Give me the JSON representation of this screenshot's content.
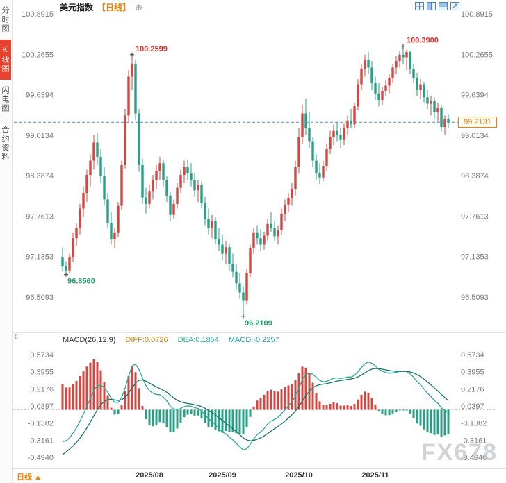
{
  "app": {
    "title": "美元指数",
    "period_tag": "【日线】",
    "add_icon": "⊕"
  },
  "sidebar": {
    "tabs": [
      {
        "label": "分时图",
        "active": false
      },
      {
        "label": "K线图",
        "active": true
      },
      {
        "label": "闪电图",
        "active": false
      },
      {
        "label": "合约资料",
        "active": false
      }
    ]
  },
  "toolbar": {
    "icons": [
      "multi-grid-icon",
      "vertical-split-icon",
      "horizontal-split-icon",
      "fullscreen-icon"
    ]
  },
  "colors": {
    "up": "#d6453f",
    "down": "#26a184",
    "high_label": "#e03131",
    "low_label": "#1f9e6e",
    "current_line": "#4f8fde",
    "badge": "#f18101",
    "line_diff": "#2aa79b",
    "line_dea": "#16756b",
    "cross": "#333333"
  },
  "chart_data": {
    "type": "candlestick",
    "title": "美元指数【日线】",
    "legend_position": "top-left",
    "grid": false,
    "y_axis_labels": [
      "100.8915",
      "100.2655",
      "99.6394",
      "99.0134",
      "98.3874",
      "97.7613",
      "97.1353",
      "96.5093"
    ],
    "y_anchor": {
      "top_value": 100.8915,
      "bottom_value": 96.5093
    },
    "x_tick_labels": [
      "2025/08",
      "2025/09",
      "2025/10",
      "2025/11"
    ],
    "x_tick_indices": [
      25,
      46,
      68,
      90
    ],
    "current_price": {
      "value": 99.2131,
      "label": "99.2131"
    },
    "annotations": [
      {
        "text": "100.2599",
        "index": 20,
        "price": 100.2599,
        "kind": "high"
      },
      {
        "text": "100.3900",
        "index": 98,
        "price": 100.39,
        "kind": "high"
      },
      {
        "text": "96.8560",
        "index": 1,
        "price": 96.856,
        "kind": "low"
      },
      {
        "text": "96.2109",
        "index": 52,
        "price": 96.2109,
        "kind": "low"
      }
    ],
    "candles": [
      [
        97.12,
        97.28,
        96.9,
        96.98
      ],
      [
        96.98,
        97.06,
        96.856,
        96.92
      ],
      [
        96.92,
        97.18,
        96.88,
        97.12
      ],
      [
        97.12,
        97.5,
        97.05,
        97.42
      ],
      [
        97.42,
        97.65,
        97.3,
        97.58
      ],
      [
        97.58,
        97.95,
        97.48,
        97.88
      ],
      [
        97.88,
        98.22,
        97.75,
        98.12
      ],
      [
        98.12,
        98.48,
        97.98,
        98.4
      ],
      [
        98.4,
        98.72,
        98.22,
        98.62
      ],
      [
        98.62,
        99.02,
        98.48,
        98.9
      ],
      [
        98.9,
        99.05,
        98.55,
        98.68
      ],
      [
        98.68,
        98.8,
        98.28,
        98.38
      ],
      [
        98.38,
        98.52,
        97.92,
        98.02
      ],
      [
        98.02,
        98.12,
        97.58,
        97.66
      ],
      [
        97.66,
        97.82,
        97.32,
        97.4
      ],
      [
        97.4,
        97.58,
        97.26,
        97.5
      ],
      [
        97.5,
        97.98,
        97.44,
        97.92
      ],
      [
        97.92,
        98.62,
        97.86,
        98.55
      ],
      [
        98.55,
        99.42,
        98.5,
        99.32
      ],
      [
        99.32,
        100.02,
        99.22,
        99.92
      ],
      [
        99.92,
        100.2599,
        99.72,
        100.12
      ],
      [
        100.12,
        100.18,
        99.25,
        99.35
      ],
      [
        99.35,
        99.42,
        98.45,
        98.55
      ],
      [
        98.55,
        98.65,
        97.95,
        98.05
      ],
      [
        98.05,
        98.2,
        97.8,
        97.95
      ],
      [
        97.95,
        98.25,
        97.88,
        98.15
      ],
      [
        98.15,
        98.4,
        98.02,
        98.32
      ],
      [
        98.32,
        98.55,
        98.18,
        98.46
      ],
      [
        98.46,
        98.68,
        98.32,
        98.58
      ],
      [
        98.58,
        98.64,
        98.22,
        98.32
      ],
      [
        98.32,
        98.38,
        97.98,
        98.08
      ],
      [
        98.08,
        98.14,
        97.68,
        97.78
      ],
      [
        97.78,
        98.02,
        97.72,
        97.95
      ],
      [
        97.95,
        98.28,
        97.88,
        98.2
      ],
      [
        98.2,
        98.48,
        98.12,
        98.4
      ],
      [
        98.4,
        98.62,
        98.28,
        98.52
      ],
      [
        98.52,
        98.64,
        98.32,
        98.42
      ],
      [
        98.42,
        98.58,
        98.22,
        98.32
      ],
      [
        98.32,
        98.42,
        98.06,
        98.16
      ],
      [
        98.16,
        98.32,
        97.98,
        98.24
      ],
      [
        98.24,
        98.3,
        97.88,
        97.96
      ],
      [
        97.96,
        98.06,
        97.62,
        97.72
      ],
      [
        97.72,
        97.88,
        97.48,
        97.58
      ],
      [
        97.58,
        97.78,
        97.42,
        97.68
      ],
      [
        97.68,
        97.74,
        97.32,
        97.4
      ],
      [
        97.4,
        97.58,
        97.22,
        97.32
      ],
      [
        97.32,
        97.48,
        97.08,
        97.18
      ],
      [
        97.18,
        97.38,
        97.02,
        97.28
      ],
      [
        97.28,
        97.34,
        96.92,
        97.02
      ],
      [
        97.02,
        97.18,
        96.82,
        96.9
      ],
      [
        96.9,
        97.02,
        96.62,
        96.72
      ],
      [
        96.72,
        96.88,
        96.48,
        96.58
      ],
      [
        96.58,
        96.68,
        96.2109,
        96.45
      ],
      [
        96.45,
        96.95,
        96.4,
        96.88
      ],
      [
        96.88,
        97.32,
        96.82,
        97.26
      ],
      [
        97.26,
        97.58,
        97.18,
        97.5
      ],
      [
        97.5,
        97.62,
        97.32,
        97.42
      ],
      [
        97.42,
        97.56,
        97.22,
        97.32
      ],
      [
        97.32,
        97.52,
        97.24,
        97.46
      ],
      [
        97.46,
        97.72,
        97.38,
        97.64
      ],
      [
        97.64,
        97.82,
        97.52,
        97.58
      ],
      [
        97.58,
        97.68,
        97.38,
        97.45
      ],
      [
        97.45,
        97.62,
        97.32,
        97.55
      ],
      [
        97.55,
        97.88,
        97.48,
        97.8
      ],
      [
        97.8,
        98.02,
        97.68,
        97.94
      ],
      [
        97.94,
        98.12,
        97.82,
        98.04
      ],
      [
        98.04,
        98.28,
        97.92,
        98.18
      ],
      [
        98.18,
        98.62,
        98.08,
        98.52
      ],
      [
        98.52,
        99.12,
        98.42,
        98.98
      ],
      [
        98.98,
        99.48,
        98.88,
        99.35
      ],
      [
        99.35,
        99.58,
        99.02,
        99.12
      ],
      [
        99.12,
        99.38,
        98.82,
        98.92
      ],
      [
        98.92,
        98.98,
        98.52,
        98.62
      ],
      [
        98.62,
        98.72,
        98.32,
        98.42
      ],
      [
        98.42,
        98.58,
        98.26,
        98.36
      ],
      [
        98.36,
        98.62,
        98.3,
        98.54
      ],
      [
        98.54,
        98.88,
        98.46,
        98.8
      ],
      [
        98.8,
        99.08,
        98.72,
        98.98
      ],
      [
        98.98,
        99.18,
        98.86,
        99.08
      ],
      [
        99.08,
        99.22,
        98.92,
        99.02
      ],
      [
        99.02,
        99.12,
        98.82,
        98.94
      ],
      [
        98.94,
        99.2,
        98.86,
        99.12
      ],
      [
        99.12,
        99.32,
        99.02,
        99.24
      ],
      [
        99.24,
        99.42,
        99.12,
        99.18
      ],
      [
        99.18,
        99.52,
        99.12,
        99.46
      ],
      [
        99.46,
        99.88,
        99.4,
        99.8
      ],
      [
        99.8,
        100.12,
        99.72,
        100.04
      ],
      [
        100.04,
        100.26,
        99.92,
        100.18
      ],
      [
        100.18,
        100.3,
        99.96,
        100.06
      ],
      [
        100.06,
        100.16,
        99.72,
        99.82
      ],
      [
        99.82,
        99.92,
        99.56,
        99.66
      ],
      [
        99.66,
        99.82,
        99.46,
        99.56
      ],
      [
        99.56,
        99.76,
        99.48,
        99.7
      ],
      [
        99.7,
        99.86,
        99.62,
        99.78
      ],
      [
        99.78,
        99.96,
        99.66,
        99.9
      ],
      [
        99.9,
        100.12,
        99.82,
        100.06
      ],
      [
        100.06,
        100.24,
        99.96,
        100.16
      ],
      [
        100.16,
        100.32,
        100.06,
        100.26
      ],
      [
        100.26,
        100.39,
        100.12,
        100.22
      ],
      [
        100.22,
        100.34,
        100.02,
        100.3
      ],
      [
        100.3,
        100.32,
        99.96,
        100.04
      ],
      [
        100.04,
        100.12,
        99.82,
        99.9
      ],
      [
        99.9,
        99.98,
        99.62,
        99.72
      ],
      [
        99.72,
        99.88,
        99.58,
        99.8
      ],
      [
        99.8,
        99.84,
        99.52,
        99.6
      ],
      [
        99.6,
        99.72,
        99.42,
        99.5
      ],
      [
        99.5,
        99.62,
        99.32,
        99.54
      ],
      [
        99.54,
        99.6,
        99.27,
        99.37
      ],
      [
        99.37,
        99.52,
        99.22,
        99.44
      ],
      [
        99.44,
        99.47,
        99.07,
        99.14
      ],
      [
        99.14,
        99.32,
        99.02,
        99.27
      ],
      [
        99.27,
        99.34,
        99.12,
        99.2131
      ]
    ],
    "macd": {
      "header": "MACD(26,12,9)",
      "diff_label": "DIFF:0.0726",
      "dea_label": "DEA:0.1854",
      "macd_label": "MACD:-0.2257",
      "y_axis_labels": [
        "0.5734",
        "0.3955",
        "0.2176",
        "0.0397",
        "-0.1382",
        "-0.3161",
        "-0.4940"
      ],
      "y_anchor": {
        "top_value": 0.5734,
        "bottom_value": -0.494
      },
      "params": {
        "fast": 12,
        "slow": 26,
        "signal": 9
      },
      "seed": {
        "ema_fast": 97.1,
        "ema_slow": 97.45,
        "dea": -0.5
      }
    }
  },
  "bottom_bar": {
    "period_label": "日线",
    "arrow": "▲"
  },
  "splitter_icon": "⇕",
  "watermark": "FX678"
}
